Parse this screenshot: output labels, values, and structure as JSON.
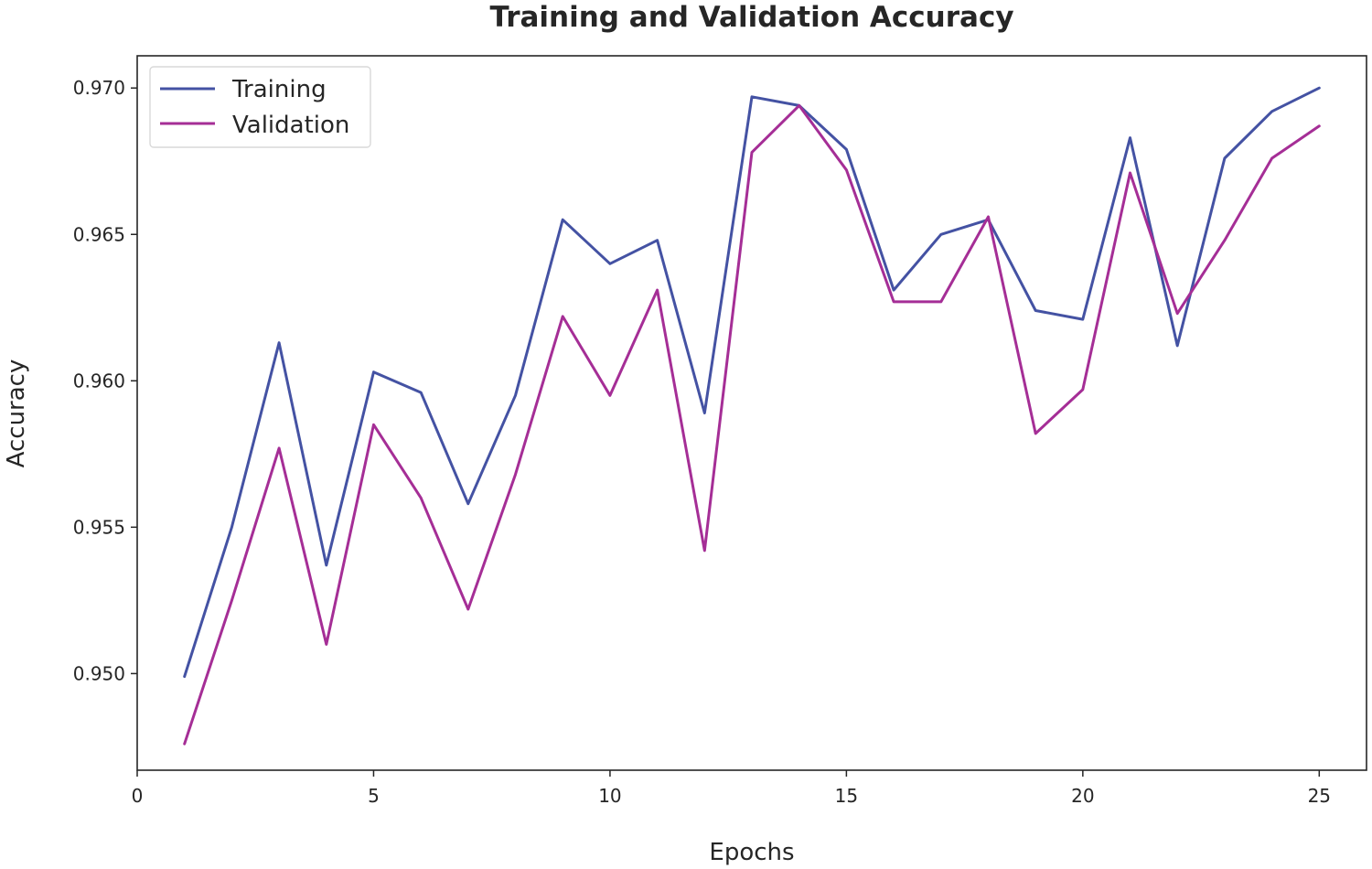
{
  "chart_data": {
    "type": "line",
    "title": "Training and Validation Accuracy",
    "xlabel": "Epochs",
    "ylabel": "Accuracy",
    "xlim": [
      0,
      26
    ],
    "ylim": [
      0.9467,
      0.9711
    ],
    "xticks": [
      0,
      5,
      10,
      15,
      20,
      25
    ],
    "yticks": [
      0.95,
      0.955,
      0.96,
      0.965,
      0.97
    ],
    "xtick_labels": [
      "0",
      "5",
      "10",
      "15",
      "20",
      "25"
    ],
    "ytick_labels": [
      "0.950",
      "0.955",
      "0.960",
      "0.965",
      "0.970"
    ],
    "legend_position": "top-left",
    "grid": false,
    "x": [
      1,
      2,
      3,
      4,
      5,
      6,
      7,
      8,
      9,
      10,
      11,
      12,
      13,
      14,
      15,
      16,
      17,
      18,
      19,
      20,
      21,
      22,
      23,
      24,
      25
    ],
    "series": [
      {
        "name": "Training",
        "color": "#4452a3",
        "values": [
          0.9499,
          0.955,
          0.9613,
          0.9537,
          0.9603,
          0.9596,
          0.9558,
          0.9595,
          0.9655,
          0.964,
          0.9648,
          0.9589,
          0.9697,
          0.9694,
          0.9679,
          0.9631,
          0.965,
          0.9655,
          0.9624,
          0.9621,
          0.9683,
          0.9612,
          0.9676,
          0.9692,
          0.97
        ]
      },
      {
        "name": "Validation",
        "color": "#a52e96",
        "values": [
          0.9476,
          0.9525,
          0.9577,
          0.951,
          0.9585,
          0.956,
          0.9522,
          0.9568,
          0.9622,
          0.9595,
          0.9631,
          0.9542,
          0.9678,
          0.9694,
          0.9672,
          0.9627,
          0.9627,
          0.9656,
          0.9582,
          0.9597,
          0.9671,
          0.9623,
          0.9648,
          0.9676,
          0.9687
        ]
      }
    ]
  }
}
